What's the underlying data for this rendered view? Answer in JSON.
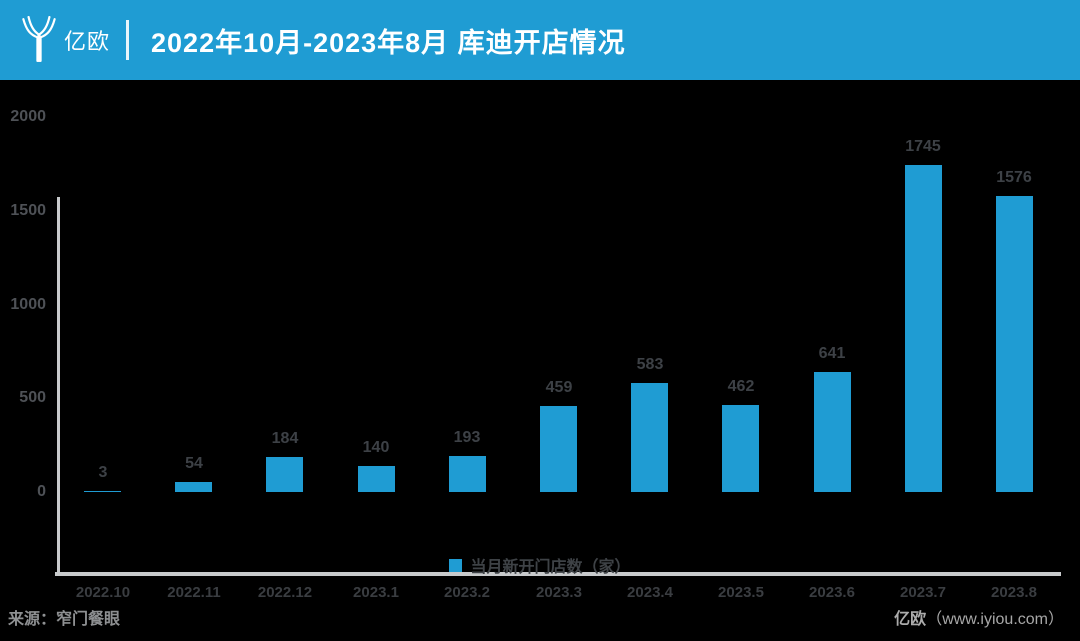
{
  "header": {
    "brand": "亿欧",
    "title": "2022年10月-2023年8月 库迪开店情况"
  },
  "chart_data": {
    "type": "bar",
    "title": "2022年10月-2023年8月 库迪开店情况",
    "categories": [
      "2022.10",
      "2022.11",
      "2022.12",
      "2023.1",
      "2023.2",
      "2023.3",
      "2023.4",
      "2023.5",
      "2023.6",
      "2023.7",
      "2023.8"
    ],
    "values": [
      3,
      54,
      184,
      140,
      193,
      459,
      583,
      462,
      641,
      1745,
      1576
    ],
    "series_name": "当月新开门店数（家）",
    "xlabel": "",
    "ylabel": "",
    "ylim": [
      0,
      2000
    ],
    "yticks": [
      0,
      500,
      1000,
      1500,
      2000
    ],
    "grid": false,
    "legend_position": "bottom",
    "bar_color": "#1F9CD3",
    "value_labels_shown": true
  },
  "legend": {
    "label": "当月新开门店数（家）"
  },
  "footer": {
    "source": "来源：窄门餐眼",
    "brand": "亿欧",
    "site": "（www.iyiou.com）"
  },
  "colors": {
    "accent_blue": "#1F9CD3",
    "background": "#000000",
    "axis_line": "#C8CACC",
    "ytick_text": "#4E5156",
    "xtick_text": "#3A3D41",
    "value_text": "#3D4146",
    "footer_text": "#A7A7A7"
  }
}
